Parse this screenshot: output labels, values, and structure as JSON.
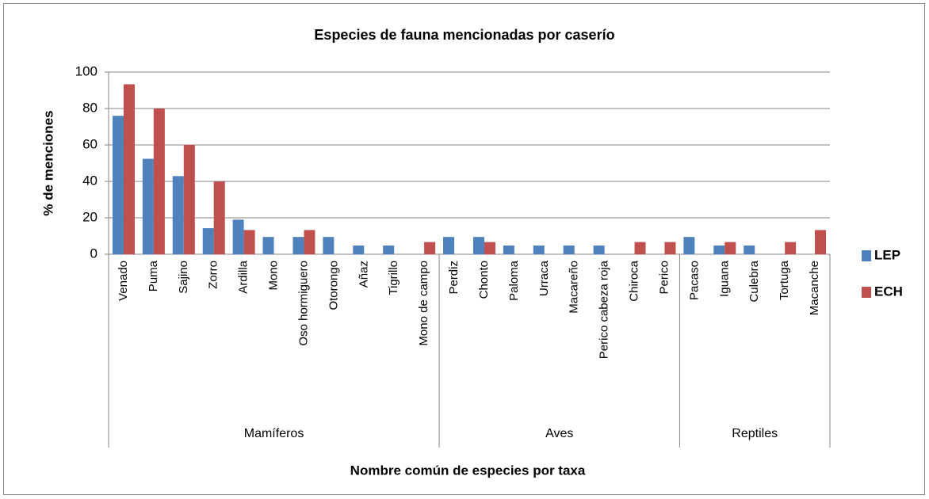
{
  "chart_data": {
    "type": "bar",
    "title": "Especies de fauna mencionadas por caserío",
    "y_label": "% de menciones",
    "x_label": "Nombre común de especies por taxa",
    "groups": [
      {
        "name": "Mamíferos",
        "categories": [
          "Venado",
          "Puma",
          "Sajino",
          "Zorro",
          "Ardilla",
          "Mono",
          "Oso hormiguero",
          "Otorongo",
          "Añaz",
          "Tigrillo",
          "Mono de campo"
        ]
      },
      {
        "name": "Aves",
        "categories": [
          "Perdiz",
          "Chonto",
          "Paloma",
          "Urraca",
          "Macareño",
          "Perico cabeza roja",
          "Chiroca",
          "Perico"
        ]
      },
      {
        "name": "Reptiles",
        "categories": [
          "Pacaso",
          "Iguana",
          "Culebra",
          "Tortuga",
          "Macanche"
        ]
      }
    ],
    "series": [
      {
        "name": "LEP",
        "color": "#4f81bd",
        "values": [
          76,
          52.4,
          42.9,
          14.3,
          19,
          9.5,
          9.5,
          9.5,
          4.8,
          4.8,
          0,
          9.5,
          9.5,
          4.8,
          4.8,
          4.8,
          4.8,
          0,
          0,
          9.5,
          4.8,
          4.8,
          0,
          0
        ]
      },
      {
        "name": "ECH",
        "color": "#c0504d",
        "values": [
          93.3,
          80,
          60,
          40,
          13.3,
          0,
          13.3,
          0,
          0,
          0,
          6.7,
          0,
          6.7,
          0,
          0,
          0,
          0,
          6.7,
          6.7,
          0,
          6.7,
          0,
          6.7,
          13.3
        ]
      }
    ],
    "ylim": [
      0,
      100
    ],
    "yticks": [
      0,
      20,
      40,
      60,
      80,
      100
    ],
    "grid": true,
    "legend": "right"
  }
}
